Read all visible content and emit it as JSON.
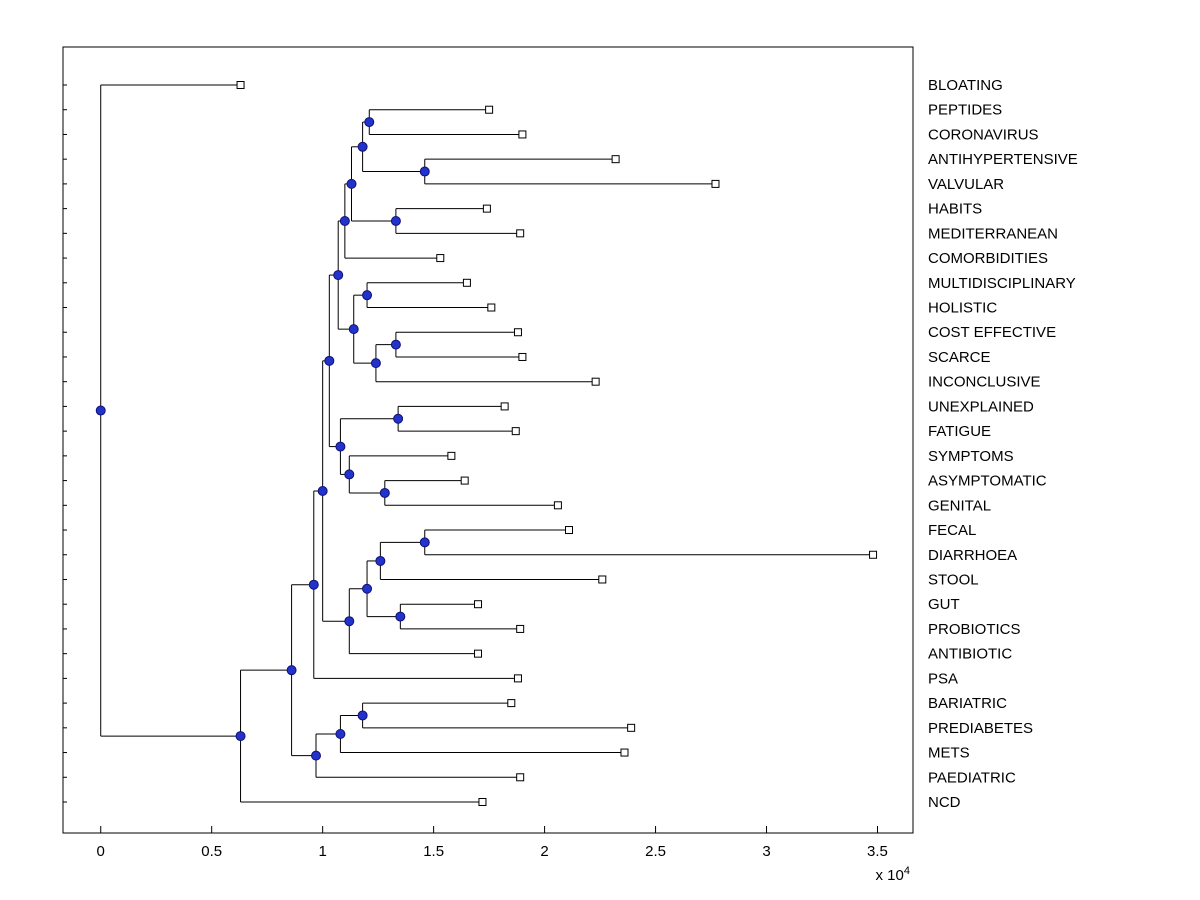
{
  "figure": {
    "background": "#ffffff"
  },
  "chart_data": {
    "type": "dendrogram",
    "orientation": "horizontal-left-to-right",
    "grid": false,
    "legend": false,
    "x_axis": {
      "range": [
        -0.17,
        3.66
      ],
      "ticks": [
        0,
        0.5,
        1,
        1.5,
        2,
        2.5,
        3,
        3.5
      ],
      "tick_labels": [
        "0",
        "0.5",
        "1",
        "1.5",
        "2",
        "2.5",
        "3",
        "3.5"
      ],
      "multiplier_label": "x 10^4"
    },
    "y_axis": {
      "labels_side": "right",
      "tick_labels": ""
    },
    "styles": {
      "line_color": "#000000",
      "leaf_marker": {
        "shape": "square",
        "fill": "#ffffff",
        "stroke": "#000000",
        "size": 7
      },
      "internal_marker": {
        "shape": "circle",
        "fill": "#2233cc",
        "stroke": "#101073",
        "size": 9
      },
      "label_color": "#000000"
    },
    "leaves": [
      {
        "label": "BLOATING",
        "x": 0.63
      },
      {
        "label": "PEPTIDES",
        "x": 1.75
      },
      {
        "label": "CORONAVIRUS",
        "x": 1.9
      },
      {
        "label": "ANTIHYPERTENSIVE",
        "x": 2.32
      },
      {
        "label": "VALVULAR",
        "x": 2.77
      },
      {
        "label": "HABITS",
        "x": 1.74
      },
      {
        "label": "MEDITERRANEAN",
        "x": 1.89
      },
      {
        "label": "COMORBIDITIES",
        "x": 1.53
      },
      {
        "label": "MULTIDISCIPLINARY",
        "x": 1.65
      },
      {
        "label": "HOLISTIC",
        "x": 1.76
      },
      {
        "label": "COST EFFECTIVE",
        "x": 1.88
      },
      {
        "label": "SCARCE",
        "x": 1.9
      },
      {
        "label": "INCONCLUSIVE",
        "x": 2.23
      },
      {
        "label": "UNEXPLAINED",
        "x": 1.82
      },
      {
        "label": "FATIGUE",
        "x": 1.87
      },
      {
        "label": "SYMPTOMS",
        "x": 1.58
      },
      {
        "label": "ASYMPTOMATIC",
        "x": 1.64
      },
      {
        "label": "GENITAL",
        "x": 2.06
      },
      {
        "label": "FECAL",
        "x": 2.11
      },
      {
        "label": "DIARRHOEA",
        "x": 3.48
      },
      {
        "label": "STOOL",
        "x": 2.26
      },
      {
        "label": "GUT",
        "x": 1.7
      },
      {
        "label": "PROBIOTICS",
        "x": 1.89
      },
      {
        "label": "ANTIBIOTIC",
        "x": 1.7
      },
      {
        "label": "PSA",
        "x": 1.88
      },
      {
        "label": "BARIATRIC",
        "x": 1.85
      },
      {
        "label": "PREDIABETES",
        "x": 2.39
      },
      {
        "label": "METS",
        "x": 2.36
      },
      {
        "label": "PAEDIATRIC",
        "x": 1.89
      },
      {
        "label": "NCD",
        "x": 1.72
      }
    ],
    "tree": {
      "x": 0.0,
      "children": [
        {
          "leaf": "BLOATING"
        },
        {
          "x": 0.63,
          "children": [
            {
              "x": 0.86,
              "children": [
                {
                  "x": 0.96,
                  "children": [
                    {
                      "x": 1.0,
                      "children": [
                        {
                          "x": 1.03,
                          "children": [
                            {
                              "x": 1.07,
                              "children": [
                                {
                                  "x": 1.1,
                                  "children": [
                                    {
                                      "x": 1.13,
                                      "children": [
                                        {
                                          "x": 1.18,
                                          "children": [
                                            {
                                              "x": 1.21,
                                              "children": [
                                                {
                                                  "leaf": "PEPTIDES"
                                                },
                                                {
                                                  "leaf": "CORONAVIRUS"
                                                }
                                              ]
                                            },
                                            {
                                              "x": 1.46,
                                              "children": [
                                                {
                                                  "leaf": "ANTIHYPERTENSIVE"
                                                },
                                                {
                                                  "leaf": "VALVULAR"
                                                }
                                              ]
                                            }
                                          ]
                                        },
                                        {
                                          "x": 1.33,
                                          "children": [
                                            {
                                              "leaf": "HABITS"
                                            },
                                            {
                                              "leaf": "MEDITERRANEAN"
                                            }
                                          ]
                                        }
                                      ]
                                    },
                                    {
                                      "leaf": "COMORBIDITIES"
                                    }
                                  ]
                                },
                                {
                                  "x": 1.14,
                                  "children": [
                                    {
                                      "x": 1.2,
                                      "children": [
                                        {
                                          "leaf": "MULTIDISCIPLINARY"
                                        },
                                        {
                                          "leaf": "HOLISTIC"
                                        }
                                      ]
                                    },
                                    {
                                      "x": 1.24,
                                      "children": [
                                        {
                                          "x": 1.33,
                                          "children": [
                                            {
                                              "leaf": "COST EFFECTIVE"
                                            },
                                            {
                                              "leaf": "SCARCE"
                                            }
                                          ]
                                        },
                                        {
                                          "leaf": "INCONCLUSIVE"
                                        }
                                      ]
                                    }
                                  ]
                                }
                              ]
                            },
                            {
                              "x": 1.08,
                              "children": [
                                {
                                  "x": 1.34,
                                  "children": [
                                    {
                                      "leaf": "UNEXPLAINED"
                                    },
                                    {
                                      "leaf": "FATIGUE"
                                    }
                                  ]
                                },
                                {
                                  "x": 1.12,
                                  "children": [
                                    {
                                      "leaf": "SYMPTOMS"
                                    },
                                    {
                                      "x": 1.28,
                                      "children": [
                                        {
                                          "leaf": "ASYMPTOMATIC"
                                        },
                                        {
                                          "leaf": "GENITAL"
                                        }
                                      ]
                                    }
                                  ]
                                }
                              ]
                            }
                          ]
                        },
                        {
                          "x": 1.12,
                          "children": [
                            {
                              "x": 1.2,
                              "children": [
                                {
                                  "x": 1.26,
                                  "children": [
                                    {
                                      "x": 1.46,
                                      "children": [
                                        {
                                          "leaf": "FECAL"
                                        },
                                        {
                                          "leaf": "DIARRHOEA"
                                        }
                                      ]
                                    },
                                    {
                                      "leaf": "STOOL"
                                    }
                                  ]
                                },
                                {
                                  "x": 1.35,
                                  "children": [
                                    {
                                      "leaf": "GUT"
                                    },
                                    {
                                      "leaf": "PROBIOTICS"
                                    }
                                  ]
                                }
                              ]
                            },
                            {
                              "leaf": "ANTIBIOTIC"
                            }
                          ]
                        }
                      ]
                    },
                    {
                      "leaf": "PSA"
                    }
                  ]
                },
                {
                  "x": 0.97,
                  "children": [
                    {
                      "x": 1.08,
                      "children": [
                        {
                          "x": 1.18,
                          "children": [
                            {
                              "leaf": "BARIATRIC"
                            },
                            {
                              "leaf": "PREDIABETES"
                            }
                          ]
                        },
                        {
                          "leaf": "METS"
                        }
                      ]
                    },
                    {
                      "leaf": "PAEDIATRIC"
                    }
                  ]
                }
              ]
            },
            {
              "leaf": "NCD"
            }
          ]
        }
      ]
    }
  }
}
